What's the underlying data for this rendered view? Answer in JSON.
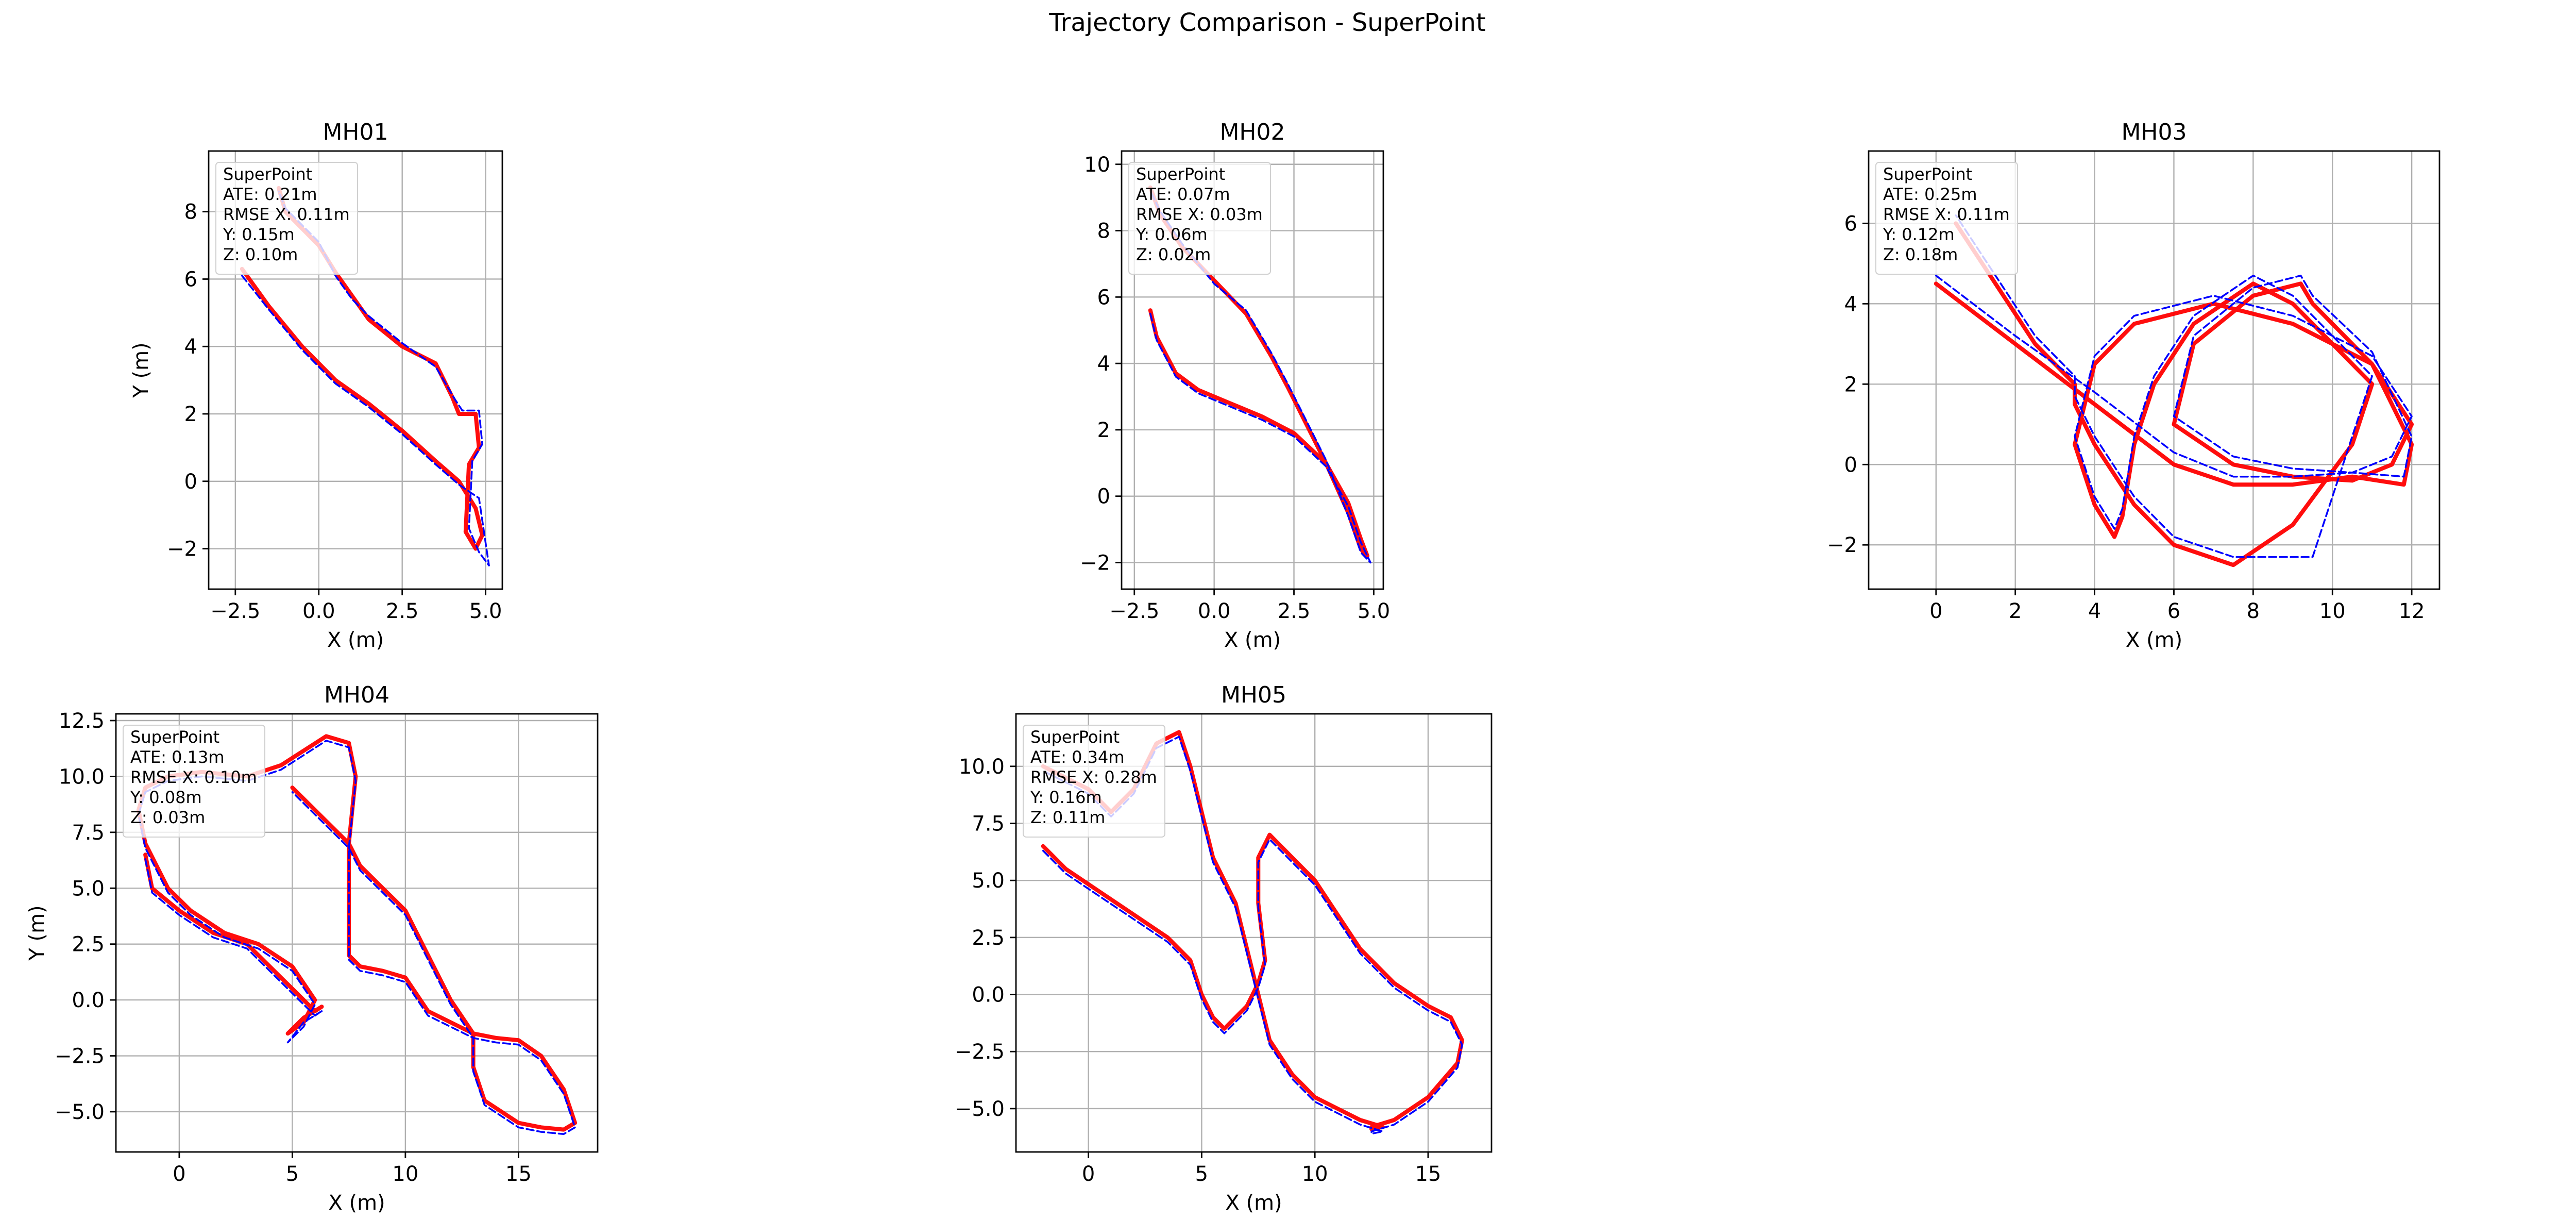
{
  "figure_title": "Trajectory Comparison - SuperPoint",
  "colors": {
    "estimated": "#ff0000",
    "ground_truth": "#0000ff",
    "grid": "#b0b0b0"
  },
  "chart_data": [
    {
      "type": "line",
      "title": "MH01",
      "xlabel": "X (m)",
      "ylabel": "Y (m)",
      "xlim": [
        -3.3,
        5.5
      ],
      "ylim": [
        -3.2,
        9.8
      ],
      "xticks": [
        -2.5,
        0.0,
        2.5,
        5.0
      ],
      "xtick_labels": [
        "−2.5",
        "0.0",
        "2.5",
        "5.0"
      ],
      "yticks": [
        -2,
        0,
        2,
        4,
        6,
        8
      ],
      "ytick_labels": [
        "−2",
        "0",
        "2",
        "4",
        "6",
        "8"
      ],
      "grid": true,
      "legend_position": "top-left",
      "annotation": [
        "SuperPoint",
        "ATE: 0.21m",
        "RMSE X: 0.11m",
        "Y: 0.15m",
        "Z: 0.10m"
      ],
      "series": [
        {
          "style": "solid",
          "color": "#ff0000",
          "x": [
            -2.3,
            -1.5,
            -0.5,
            0.5,
            1.5,
            2.5,
            3.5,
            4.2,
            4.7,
            4.9,
            4.7,
            4.4,
            4.5,
            4.8,
            4.7,
            4.2,
            4.0,
            3.5,
            2.5,
            1.5,
            1.0,
            0.5,
            0.0,
            -0.5,
            -1.0,
            -1.2
          ],
          "y": [
            6.3,
            5.2,
            4.0,
            3.0,
            2.3,
            1.5,
            0.6,
            0.0,
            -0.8,
            -1.6,
            -2.0,
            -1.5,
            0.5,
            1.0,
            2.0,
            2.0,
            2.5,
            3.5,
            4.0,
            4.8,
            5.5,
            6.2,
            7.0,
            7.5,
            8.0,
            8.7
          ]
        },
        {
          "style": "dashed",
          "color": "#0000ff",
          "x": [
            -2.3,
            -1.5,
            -0.5,
            0.5,
            1.5,
            2.5,
            3.5,
            4.2,
            4.8,
            5.1,
            4.8,
            4.5,
            4.6,
            4.9,
            4.8,
            4.3,
            4.1,
            3.5,
            2.5,
            1.5,
            1.0,
            0.5,
            0.0,
            -0.5,
            -1.0,
            -1.2
          ],
          "y": [
            6.1,
            5.1,
            3.9,
            2.9,
            2.2,
            1.4,
            0.5,
            -0.1,
            -0.5,
            -2.5,
            -2.1,
            -1.4,
            0.6,
            1.1,
            2.1,
            2.1,
            2.4,
            3.4,
            4.1,
            4.9,
            5.4,
            6.1,
            7.1,
            7.6,
            8.1,
            8.6
          ]
        }
      ]
    },
    {
      "type": "line",
      "title": "MH02",
      "xlabel": "X (m)",
      "ylabel": "",
      "xlim": [
        -2.9,
        5.3
      ],
      "ylim": [
        -2.8,
        10.4
      ],
      "xticks": [
        -2.5,
        0.0,
        2.5,
        5.0
      ],
      "xtick_labels": [
        "−2.5",
        "0.0",
        "2.5",
        "5.0"
      ],
      "yticks": [
        -2,
        0,
        2,
        4,
        6,
        8,
        10
      ],
      "ytick_labels": [
        "−2",
        "0",
        "2",
        "4",
        "6",
        "8",
        "10"
      ],
      "grid": true,
      "legend_position": "top-left",
      "annotation": [
        "SuperPoint",
        "ATE: 0.07m",
        "RMSE X: 0.03m",
        "Y: 0.06m",
        "Z: 0.02m"
      ],
      "series": [
        {
          "style": "solid",
          "color": "#ff0000",
          "x": [
            -2.0,
            -1.8,
            -1.2,
            -0.5,
            0.5,
            1.5,
            2.5,
            3.5,
            4.2,
            4.6,
            4.8,
            4.6,
            4.2,
            3.5,
            2.3,
            1.8,
            1.0,
            0.0,
            -1.0,
            -1.7,
            -2.0
          ],
          "y": [
            5.6,
            4.8,
            3.7,
            3.2,
            2.8,
            2.4,
            1.9,
            1.0,
            -0.2,
            -1.3,
            -1.8,
            -1.6,
            -0.5,
            1.0,
            3.3,
            4.2,
            5.5,
            6.5,
            7.5,
            8.5,
            9.3
          ]
        },
        {
          "style": "dashed",
          "color": "#0000ff",
          "x": [
            -2.0,
            -1.8,
            -1.2,
            -0.5,
            0.5,
            1.5,
            2.5,
            3.5,
            4.2,
            4.6,
            4.9,
            4.6,
            4.2,
            3.5,
            2.3,
            1.8,
            1.0,
            0.0,
            -1.0,
            -1.7,
            -2.0
          ],
          "y": [
            5.5,
            4.7,
            3.6,
            3.1,
            2.7,
            2.3,
            1.8,
            0.9,
            -0.3,
            -1.4,
            -2.0,
            -1.7,
            -0.6,
            1.1,
            3.4,
            4.3,
            5.6,
            6.4,
            7.6,
            8.6,
            9.2
          ]
        }
      ]
    },
    {
      "type": "line",
      "title": "MH03",
      "xlabel": "X (m)",
      "ylabel": "",
      "xlim": [
        -1.7,
        12.7
      ],
      "ylim": [
        -3.1,
        7.8
      ],
      "xticks": [
        0,
        2,
        4,
        6,
        8,
        10,
        12
      ],
      "xtick_labels": [
        "0",
        "2",
        "4",
        "6",
        "8",
        "10",
        "12"
      ],
      "yticks": [
        -2,
        0,
        2,
        4,
        6
      ],
      "ytick_labels": [
        "−2",
        "0",
        "2",
        "4",
        "6"
      ],
      "grid": true,
      "legend_position": "top-left",
      "annotation": [
        "SuperPoint",
        "ATE: 0.25m",
        "RMSE X: 0.11m",
        "Y: 0.12m",
        "Z: 0.18m"
      ],
      "series": [
        {
          "style": "solid",
          "color": "#ff0000",
          "x": [
            0.0,
            2.0,
            4.0,
            6.0,
            7.5,
            9.0,
            10.5,
            11.8,
            12.0,
            11.0,
            9.5,
            9.2,
            8.0,
            6.5,
            6.0,
            7.5,
            9.0,
            10.5,
            11.5,
            12.0,
            11.0,
            9.0,
            7.0,
            5.0,
            4.0,
            3.5,
            4.0,
            4.5,
            4.7,
            5.0,
            5.5,
            6.5,
            8.0,
            9.0,
            10.0,
            11.0,
            10.5,
            9.0,
            7.5,
            6.0,
            5.0,
            4.0,
            3.5,
            3.5,
            2.5,
            1.5,
            0.5
          ],
          "y": [
            4.5,
            3.0,
            1.5,
            0.0,
            -0.5,
            -0.5,
            -0.3,
            -0.5,
            0.5,
            2.5,
            4.0,
            4.5,
            4.2,
            3.0,
            1.0,
            0.0,
            -0.3,
            -0.4,
            0.0,
            1.0,
            2.5,
            3.5,
            4.0,
            3.5,
            2.5,
            0.5,
            -1.0,
            -1.8,
            -1.3,
            0.5,
            2.0,
            3.5,
            4.5,
            4.0,
            3.0,
            2.0,
            0.5,
            -1.5,
            -2.5,
            -2.0,
            -1.0,
            0.5,
            1.5,
            2.0,
            3.0,
            4.5,
            6.0
          ]
        },
        {
          "style": "dashed",
          "color": "#0000ff",
          "x": [
            0.0,
            2.0,
            4.0,
            6.0,
            7.5,
            9.0,
            10.5,
            11.8,
            12.0,
            11.0,
            9.5,
            9.2,
            8.0,
            6.5,
            6.0,
            7.5,
            9.0,
            10.5,
            11.5,
            12.0,
            11.0,
            9.0,
            7.0,
            5.0,
            4.0,
            3.5,
            4.0,
            4.5,
            4.7,
            5.0,
            5.5,
            6.5,
            8.0,
            9.0,
            10.0,
            11.0,
            10.5,
            9.5,
            7.5,
            6.0,
            5.0,
            4.0,
            3.5,
            3.5,
            2.5,
            1.5,
            0.5
          ],
          "y": [
            4.7,
            3.2,
            1.8,
            0.3,
            -0.3,
            -0.3,
            -0.2,
            -0.3,
            0.7,
            2.8,
            4.2,
            4.7,
            4.4,
            3.2,
            1.2,
            0.2,
            -0.1,
            -0.2,
            0.2,
            1.2,
            2.7,
            3.7,
            4.2,
            3.7,
            2.7,
            0.7,
            -0.8,
            -1.6,
            -1.1,
            0.7,
            2.2,
            3.7,
            4.7,
            4.2,
            3.2,
            2.2,
            0.7,
            -2.3,
            -2.3,
            -1.8,
            -0.8,
            0.7,
            1.7,
            2.2,
            3.2,
            4.7,
            6.2
          ]
        }
      ]
    },
    {
      "type": "line",
      "title": "MH04",
      "xlabel": "X (m)",
      "ylabel": "Y (m)",
      "xlim": [
        -2.8,
        18.5
      ],
      "ylim": [
        -6.8,
        12.8
      ],
      "xticks": [
        0,
        5,
        10,
        15
      ],
      "xtick_labels": [
        "0",
        "5",
        "10",
        "15"
      ],
      "yticks": [
        -5.0,
        -2.5,
        0.0,
        2.5,
        5.0,
        7.5,
        10.0,
        12.5
      ],
      "ytick_labels": [
        "−5.0",
        "−2.5",
        "0.0",
        "2.5",
        "5.0",
        "7.5",
        "10.0",
        "12.5"
      ],
      "grid": true,
      "legend_position": "top-left",
      "annotation": [
        "SuperPoint",
        "ATE: 0.13m",
        "RMSE X: 0.10m",
        "Y: 0.08m",
        "Z: 0.03m"
      ],
      "series": [
        {
          "style": "solid",
          "color": "#ff0000",
          "x": [
            -1.5,
            -1.2,
            0.0,
            1.5,
            3.0,
            4.0,
            5.0,
            6.0,
            6.3,
            5.5,
            4.8,
            5.5,
            6.0,
            5.0,
            3.5,
            2.0,
            0.5,
            -0.5,
            -1.5,
            -1.8,
            -1.5,
            -0.5,
            1.0,
            3.0,
            4.5,
            6.5,
            7.5,
            7.8,
            7.5,
            7.5,
            8.0,
            9.0,
            10.0,
            11.0,
            12.0,
            13.0,
            14.0,
            15.0,
            16.0,
            17.0,
            17.5,
            17.0,
            16.0,
            15.0,
            13.5,
            13.0,
            13.0,
            12.0,
            11.0,
            10.0,
            9.0,
            8.0,
            7.5,
            6.5,
            5.0
          ],
          "y": [
            6.5,
            5.0,
            4.0,
            3.0,
            2.5,
            1.5,
            0.5,
            -0.5,
            -0.3,
            -0.8,
            -1.5,
            -1.0,
            0.0,
            1.5,
            2.5,
            3.0,
            4.0,
            5.0,
            7.0,
            8.5,
            9.5,
            10.0,
            10.2,
            10.0,
            10.5,
            11.8,
            11.5,
            10.0,
            7.0,
            2.0,
            1.5,
            1.3,
            1.0,
            -0.5,
            -1.0,
            -1.5,
            -1.7,
            -1.8,
            -2.5,
            -4.0,
            -5.5,
            -5.8,
            -5.7,
            -5.5,
            -4.5,
            -3.0,
            -1.5,
            0.0,
            2.0,
            4.0,
            5.0,
            6.0,
            7.0,
            8.0,
            9.5
          ]
        },
        {
          "style": "dashed",
          "color": "#0000ff",
          "x": [
            -1.5,
            -1.2,
            0.0,
            1.5,
            3.0,
            4.0,
            5.0,
            6.0,
            6.3,
            5.5,
            4.8,
            5.5,
            6.0,
            5.0,
            3.5,
            2.0,
            0.5,
            -0.5,
            -1.5,
            -1.8,
            -1.5,
            -0.5,
            1.0,
            3.0,
            4.5,
            6.5,
            7.5,
            7.8,
            7.5,
            7.5,
            8.0,
            9.0,
            10.0,
            11.0,
            12.0,
            13.0,
            14.0,
            15.0,
            16.0,
            17.0,
            17.5,
            17.0,
            16.0,
            15.0,
            13.5,
            13.0,
            13.0,
            12.0,
            11.0,
            10.0,
            9.0,
            8.0,
            7.5,
            6.5,
            5.0
          ],
          "y": [
            6.3,
            4.8,
            3.8,
            2.8,
            2.3,
            1.3,
            0.3,
            -0.7,
            -0.5,
            -1.0,
            -1.9,
            -1.2,
            -0.2,
            1.3,
            2.3,
            2.8,
            3.8,
            4.8,
            6.8,
            8.3,
            9.3,
            9.8,
            10.0,
            9.8,
            10.3,
            11.6,
            11.3,
            9.8,
            6.8,
            1.8,
            1.3,
            1.1,
            0.8,
            -0.7,
            -1.2,
            -1.7,
            -1.9,
            -2.0,
            -2.7,
            -4.2,
            -5.7,
            -6.0,
            -5.9,
            -5.7,
            -4.7,
            -3.2,
            -1.7,
            -0.2,
            1.8,
            3.8,
            4.8,
            5.8,
            6.8,
            7.8,
            9.3
          ]
        }
      ]
    },
    {
      "type": "line",
      "title": "MH05",
      "xlabel": "X (m)",
      "ylabel": "",
      "xlim": [
        -3.2,
        17.8
      ],
      "ylim": [
        -6.9,
        12.3
      ],
      "xticks": [
        0,
        5,
        10,
        15
      ],
      "xtick_labels": [
        "0",
        "5",
        "10",
        "15"
      ],
      "yticks": [
        -5.0,
        -2.5,
        0.0,
        2.5,
        5.0,
        7.5,
        10.0
      ],
      "ytick_labels": [
        "−5.0",
        "−2.5",
        "0.0",
        "2.5",
        "5.0",
        "7.5",
        "10.0"
      ],
      "grid": true,
      "legend_position": "top-left",
      "annotation": [
        "SuperPoint",
        "ATE: 0.34m",
        "RMSE X: 0.28m",
        "Y: 0.16m",
        "Z: 0.11m"
      ],
      "series": [
        {
          "style": "solid",
          "color": "#ff0000",
          "x": [
            -2.0,
            -1.0,
            0.5,
            2.0,
            3.5,
            4.5,
            5.0,
            5.5,
            6.0,
            7.0,
            7.5,
            7.8,
            7.5,
            7.5,
            8.0,
            9.0,
            10.0,
            11.0,
            12.0,
            13.5,
            15.0,
            16.0,
            16.5,
            16.3,
            15.0,
            13.5,
            12.5,
            12.5,
            13.0,
            12.0,
            11.0,
            10.0,
            9.0,
            8.0,
            7.5,
            7.0,
            6.5,
            5.5,
            5.0,
            4.5,
            4.0,
            3.0,
            2.0,
            1.0,
            0.5,
            0.0,
            -1.0,
            -2.0
          ],
          "y": [
            6.5,
            5.5,
            4.5,
            3.5,
            2.5,
            1.5,
            0.0,
            -1.0,
            -1.5,
            -0.5,
            0.5,
            1.5,
            4.0,
            6.0,
            7.0,
            6.0,
            5.0,
            3.5,
            2.0,
            0.5,
            -0.5,
            -1.0,
            -2.0,
            -3.0,
            -4.5,
            -5.5,
            -5.8,
            -5.9,
            -5.8,
            -5.5,
            -5.0,
            -4.5,
            -3.5,
            -2.0,
            0.0,
            2.0,
            4.0,
            6.0,
            8.0,
            10.0,
            11.5,
            11.0,
            9.0,
            8.0,
            8.5,
            9.0,
            9.5,
            10.0
          ]
        },
        {
          "style": "dashed",
          "color": "#0000ff",
          "x": [
            -2.0,
            -1.0,
            0.5,
            2.0,
            3.5,
            4.5,
            5.0,
            5.5,
            6.0,
            7.0,
            7.5,
            7.8,
            7.5,
            7.5,
            8.0,
            9.0,
            10.0,
            11.0,
            12.0,
            13.5,
            15.0,
            16.0,
            16.5,
            16.3,
            15.0,
            13.5,
            12.5,
            12.5,
            13.0,
            12.0,
            11.0,
            10.0,
            9.0,
            8.0,
            7.5,
            7.0,
            6.5,
            5.5,
            5.0,
            4.5,
            4.0,
            3.0,
            2.0,
            1.0,
            0.5,
            0.0,
            -1.0,
            -2.0
          ],
          "y": [
            6.3,
            5.3,
            4.3,
            3.3,
            2.3,
            1.3,
            -0.2,
            -1.2,
            -1.7,
            -0.7,
            0.3,
            1.3,
            3.8,
            5.8,
            6.8,
            5.8,
            4.8,
            3.3,
            1.8,
            0.3,
            -0.7,
            -1.2,
            -2.2,
            -3.2,
            -4.7,
            -5.7,
            -6.0,
            -6.1,
            -6.0,
            -5.7,
            -5.2,
            -4.7,
            -3.7,
            -2.2,
            -0.2,
            1.8,
            3.8,
            5.8,
            7.8,
            9.8,
            11.3,
            10.8,
            8.8,
            7.8,
            8.3,
            8.8,
            9.3,
            9.8
          ]
        }
      ]
    }
  ]
}
